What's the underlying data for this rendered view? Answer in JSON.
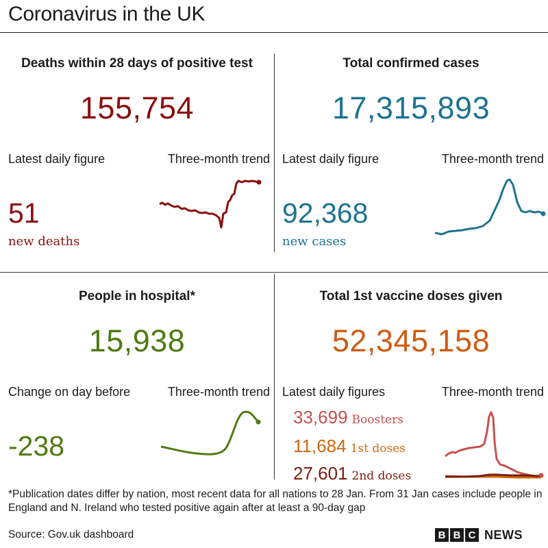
{
  "title": "Coronavirus in the UK",
  "colors": {
    "deaths": "#8a0e0e",
    "cases": "#1d7391",
    "hospital": "#4f7a14",
    "vaccine": "#cc5c14",
    "boosters": "#c7504f",
    "first_doses": "#cc6a14",
    "second_doses": "#7a1d0e"
  },
  "deaths": {
    "heading": "Deaths within 28 days of positive test",
    "total": "155,754",
    "latest_label": "Latest daily figure",
    "trend_label": "Three-month trend",
    "daily": "51",
    "unit": "new deaths"
  },
  "cases": {
    "heading": "Total confirmed cases",
    "total": "17,315,893",
    "latest_label": "Latest daily figure",
    "trend_label": "Three-month trend",
    "daily": "92,368",
    "unit": "new cases"
  },
  "hospital": {
    "heading": "People in hospital*",
    "total": "15,938",
    "change_label": "Change on day before",
    "trend_label": "Three-month trend",
    "change": "-238"
  },
  "vaccine": {
    "heading": "Total 1st vaccine doses given",
    "total": "52,345,158",
    "latest_label": "Latest daily figures",
    "trend_label": "Three-month trend",
    "rows": [
      {
        "value": "33,699",
        "label": "Boosters"
      },
      {
        "value": "11,684",
        "label": "1st doses"
      },
      {
        "value": "27,601",
        "label": "2nd doses"
      }
    ]
  },
  "footnote": "*Publication dates differ by nation, most recent data for all nations to 28 Jan. From 31 Jan cases include people in England and N. Ireland who tested positive again after at least a 90-day gap",
  "source": "Source: Gov.uk dashboard",
  "brand": {
    "letters": [
      "B",
      "B",
      "C"
    ],
    "news": "NEWS"
  }
}
